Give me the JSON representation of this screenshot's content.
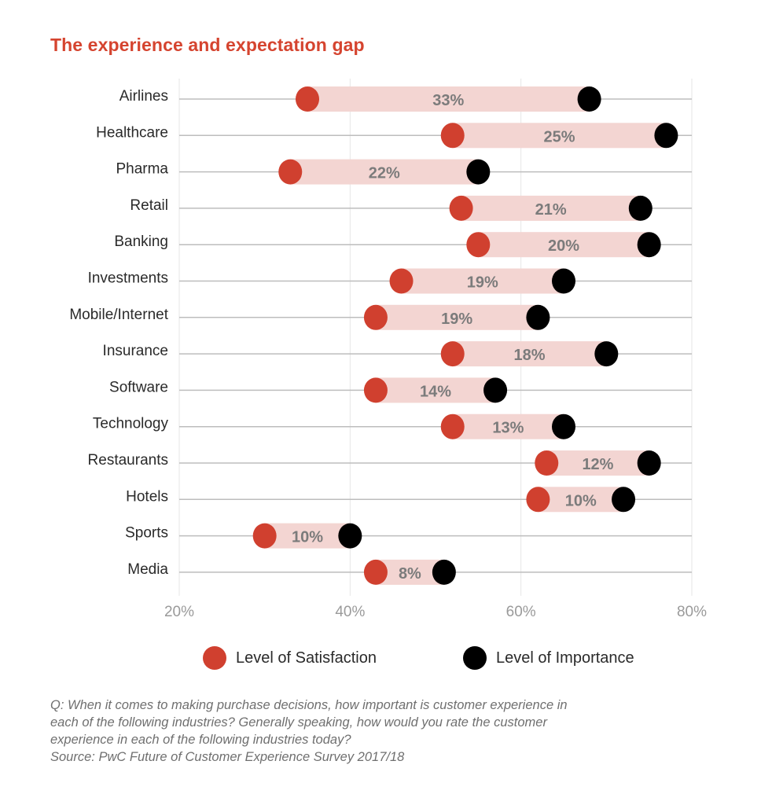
{
  "title": "The experience and expectation gap",
  "colors": {
    "satisfaction": "#d0402f",
    "importance": "#000000",
    "gap_band": "#f3d5d2",
    "title": "#d5442f",
    "gridline": "#bdbdbd"
  },
  "chart_data": {
    "type": "dumbbell",
    "title": "The experience and expectation gap",
    "xlabel": "",
    "ylabel": "",
    "xlim": [
      20,
      80
    ],
    "x_ticks": [
      20,
      40,
      60,
      80
    ],
    "x_tick_labels": [
      "20%",
      "40%",
      "60%",
      "80%"
    ],
    "grid": true,
    "legend_position": "bottom",
    "categories": [
      "Airlines",
      "Healthcare",
      "Pharma",
      "Retail",
      "Banking",
      "Investments",
      "Mobile/Internet",
      "Insurance",
      "Software",
      "Technology",
      "Restaurants",
      "Hotels",
      "Sports",
      "Media"
    ],
    "series": [
      {
        "name": "Level of Satisfaction",
        "values": [
          35,
          52,
          33,
          53,
          55,
          46,
          43,
          52,
          43,
          52,
          63,
          62,
          30,
          43
        ]
      },
      {
        "name": "Level of Importance",
        "values": [
          68,
          77,
          55,
          74,
          75,
          65,
          62,
          70,
          57,
          65,
          75,
          72,
          40,
          51
        ]
      }
    ],
    "gap_labels": [
      "33%",
      "25%",
      "22%",
      "21%",
      "20%",
      "19%",
      "19%",
      "18%",
      "14%",
      "13%",
      "12%",
      "10%",
      "10%",
      "8%"
    ]
  },
  "legend": [
    {
      "label": "Level of Satisfaction",
      "icon": "red-circle"
    },
    {
      "label": "Level of Importance",
      "icon": "black-circle"
    }
  ],
  "footnote": {
    "question_lines": [
      "Q: When it comes to making purchase decisions, how important is customer experience in",
      "each of the following industries? Generally speaking, how would you rate the customer",
      "experience in each of the following industries today?"
    ],
    "source": "Source: PwC Future of Customer Experience Survey 2017/18"
  }
}
